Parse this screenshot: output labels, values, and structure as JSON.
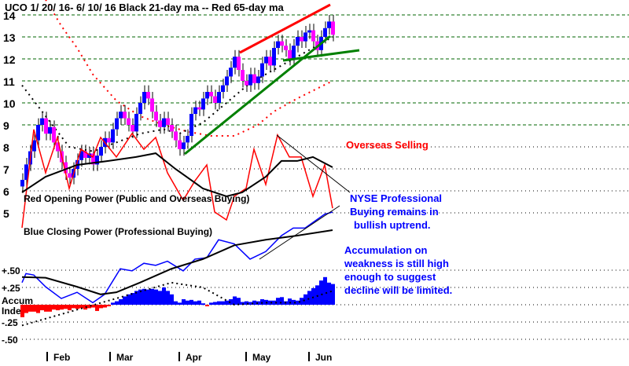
{
  "chart_data": {
    "type": "line",
    "title": "UCO   1/ 20/ 16- 6/ 10/ 16    Black 21-day ma --  Red 65-day ma",
    "price_axis": {
      "ticks": [
        5,
        6,
        7,
        8,
        9,
        10,
        11,
        12,
        13,
        14
      ],
      "ylim": [
        4,
        14.7
      ]
    },
    "accum_axis": {
      "ticks": [
        {
          "v": 0.5,
          "label": "+.50"
        },
        {
          "v": 0.25,
          "label": "+.25"
        },
        {
          "v": -0.25,
          "label": "-.25"
        },
        {
          "v": -0.5,
          "label": "-.50"
        }
      ],
      "label1": "Accum",
      "label2": "Inde"
    },
    "months": [
      {
        "label": "Feb",
        "day": 6.4
      },
      {
        "label": "Mar",
        "day": 22.4
      },
      {
        "label": "Apr",
        "day": 40
      },
      {
        "label": "May",
        "day": 57
      },
      {
        "label": "Jun",
        "day": 73
      }
    ],
    "closes": [
      6.5,
      7.2,
      7.8,
      8.3,
      9.0,
      9.3,
      8.6,
      8.9,
      8.2,
      7.8,
      7.3,
      6.8,
      6.6,
      7.0,
      7.4,
      7.8,
      7.5,
      7.7,
      7.2,
      7.6,
      8.0,
      8.4,
      8.2,
      8.8,
      9.3,
      9.6,
      9.3,
      9.0,
      8.7,
      9.5,
      10.0,
      10.5,
      10.2,
      9.6,
      9.2,
      8.9,
      9.3,
      9.0,
      8.7,
      8.3,
      7.9,
      8.2,
      8.5,
      9.5,
      9.8,
      9.7,
      10.2,
      10.5,
      10.3,
      10.0,
      10.5,
      10.8,
      11.2,
      11.6,
      12.1,
      11.5,
      11.0,
      10.8,
      11.3,
      10.9,
      11.2,
      11.8,
      12.1,
      11.7,
      12.5,
      12.8,
      12.6,
      12.4,
      12.0,
      12.6,
      13.0,
      12.8,
      13.2,
      13.3,
      12.8,
      12.4,
      13.0,
      13.4,
      13.7,
      13.1
    ],
    "ma65": [
      [
        6,
        14.7
      ],
      [
        10,
        13.5
      ],
      [
        14,
        12.5
      ],
      [
        18,
        11.3
      ],
      [
        24,
        10.1
      ],
      [
        30,
        9.4
      ],
      [
        36,
        9.0
      ],
      [
        42,
        8.7
      ],
      [
        48,
        8.5
      ],
      [
        54,
        8.5
      ],
      [
        60,
        9.0
      ],
      [
        64,
        9.6
      ],
      [
        70,
        10.2
      ],
      [
        79,
        11.0
      ]
    ],
    "ma21": [
      [
        0,
        10.8
      ],
      [
        6,
        9.4
      ],
      [
        12,
        8.0
      ],
      [
        18,
        7.8
      ],
      [
        24,
        8.2
      ],
      [
        30,
        8.6
      ],
      [
        36,
        8.8
      ],
      [
        40,
        8.6
      ],
      [
        46,
        9.1
      ],
      [
        52,
        10.0
      ],
      [
        58,
        10.9
      ],
      [
        64,
        11.5
      ],
      [
        70,
        12.1
      ],
      [
        79,
        13.0
      ]
    ],
    "opening_power": [
      [
        0,
        4.32
      ],
      [
        3,
        8.79
      ],
      [
        6,
        6.82
      ],
      [
        9,
        8.43
      ],
      [
        12,
        6.11
      ],
      [
        15,
        7.89
      ],
      [
        18,
        7.54
      ],
      [
        20,
        8.43
      ],
      [
        24,
        7.54
      ],
      [
        28,
        8.61
      ],
      [
        31,
        7.89
      ],
      [
        34,
        8.43
      ],
      [
        37,
        6.82
      ],
      [
        41,
        5.57
      ],
      [
        44,
        6.46
      ],
      [
        47,
        7.18
      ],
      [
        49,
        5.04
      ],
      [
        52,
        4.68
      ],
      [
        54,
        5.75
      ],
      [
        57,
        6.11
      ],
      [
        59,
        7.89
      ],
      [
        62,
        6.29
      ],
      [
        65,
        8.54
      ],
      [
        68,
        7.54
      ],
      [
        71,
        7.54
      ],
      [
        74,
        5.75
      ],
      [
        77,
        7.18
      ],
      [
        79,
        5.21
      ]
    ],
    "opening_power_ma": [
      [
        0,
        5.93
      ],
      [
        6,
        6.64
      ],
      [
        14,
        7.18
      ],
      [
        22,
        7.36
      ],
      [
        29,
        7.54
      ],
      [
        34,
        7.71
      ],
      [
        39,
        7.0
      ],
      [
        46,
        6.11
      ],
      [
        52,
        5.75
      ],
      [
        56,
        5.93
      ],
      [
        62,
        6.64
      ],
      [
        66,
        7.36
      ],
      [
        70,
        7.36
      ],
      [
        74,
        7.54
      ],
      [
        79,
        7.07
      ]
    ],
    "closing_power": [
      [
        0,
        0.32
      ],
      [
        1,
        0.45
      ],
      [
        3,
        0.43
      ],
      [
        6,
        0.26
      ],
      [
        10,
        0.09
      ],
      [
        14,
        0.18
      ],
      [
        18,
        0.03
      ],
      [
        21,
        0.15
      ],
      [
        25,
        0.52
      ],
      [
        28,
        0.49
      ],
      [
        31,
        0.6
      ],
      [
        34,
        0.57
      ],
      [
        37,
        0.63
      ],
      [
        41,
        0.49
      ],
      [
        44,
        0.66
      ],
      [
        47,
        0.68
      ],
      [
        50,
        0.94
      ],
      [
        54,
        0.88
      ],
      [
        58,
        0.66
      ],
      [
        62,
        0.77
      ],
      [
        66,
        1.0
      ],
      [
        69,
        1.11
      ],
      [
        72,
        1.11
      ],
      [
        74,
        1.19
      ],
      [
        77,
        1.31
      ],
      [
        79,
        1.34
      ]
    ],
    "closing_power_ma": [
      [
        0,
        0.4
      ],
      [
        6,
        0.39
      ],
      [
        14,
        0.26
      ],
      [
        20,
        0.15
      ],
      [
        24,
        0.18
      ],
      [
        30,
        0.32
      ],
      [
        38,
        0.52
      ],
      [
        46,
        0.66
      ],
      [
        54,
        0.86
      ],
      [
        62,
        0.94
      ],
      [
        70,
        1.0
      ],
      [
        79,
        1.08
      ]
    ],
    "accum": [
      -0.18,
      -0.12,
      -0.1,
      -0.1,
      -0.12,
      -0.08,
      -0.1,
      -0.1,
      -0.07,
      -0.08,
      -0.07,
      -0.06,
      -0.08,
      -0.05,
      -0.06,
      -0.05,
      -0.07,
      -0.05,
      -0.04,
      -0.09,
      -0.05,
      -0.04,
      -0.02,
      0.03,
      0.05,
      0.08,
      0.12,
      0.15,
      0.17,
      0.2,
      0.22,
      0.23,
      0.22,
      0.23,
      0.22,
      0.2,
      0.25,
      0.2,
      0.15,
      0.05,
      0.03,
      0.08,
      0.06,
      0.07,
      0.05,
      0.06,
      0.02,
      -0.02,
      0.03,
      0.04,
      0.05,
      0.05,
      0.06,
      0.08,
      0.12,
      0.1,
      0.04,
      0.05,
      0.04,
      0.06,
      0.05,
      0.08,
      0.07,
      0.06,
      0.06,
      0.1,
      0.11,
      0.05,
      0.09,
      0.07,
      0.06,
      0.1,
      0.15,
      0.2,
      0.24,
      0.28,
      0.35,
      0.4,
      0.32,
      0.3
    ],
    "accum_ma": [
      [
        0,
        -0.3
      ],
      [
        38,
        0.32
      ],
      [
        46,
        0.25
      ],
      [
        54,
        0.0
      ],
      [
        62,
        0.03
      ],
      [
        70,
        0.03
      ],
      [
        79,
        0.2
      ]
    ],
    "labels": {
      "opening_power": "Red Opening Power (Public and Overseas Buying)",
      "closing_power": "Blue Closing Power (Professional Buying)"
    },
    "annotations": {
      "overseas": "Overseas Selling",
      "nyse": [
        "NYSE Professional",
        "Buying remains in",
        "bullish uptrend."
      ],
      "accum": [
        "Accumulation on",
        "weakness is still high",
        "enough to suggest",
        "decline will be limited."
      ]
    },
    "colors": {
      "up": "#0000ff",
      "down": "#ff00ff",
      "red": "#ff0000",
      "green": "#008000",
      "blue": "#0000ff"
    }
  }
}
